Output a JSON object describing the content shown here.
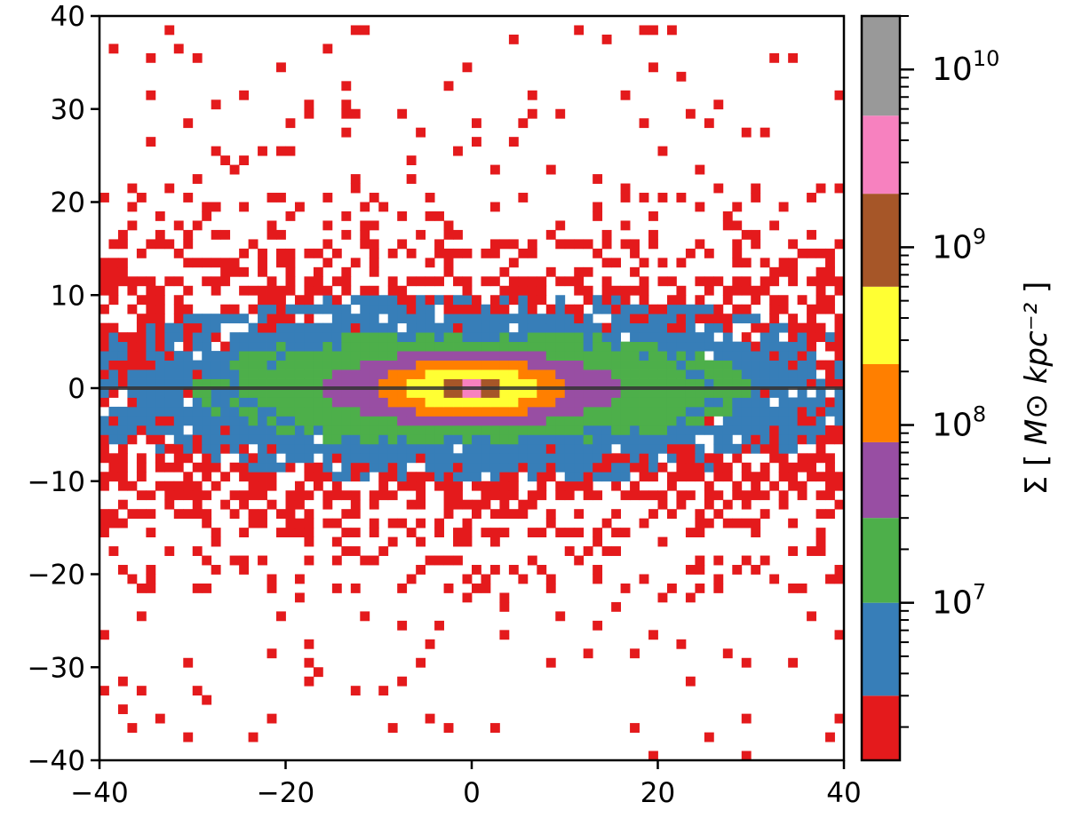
{
  "chart_data": {
    "type": "heatmap",
    "title": "",
    "xlabel": "",
    "ylabel": "",
    "xlim": [
      -40,
      40
    ],
    "ylim": [
      -40,
      40
    ],
    "bin_size_kpc": 1.0,
    "x_ticks": [
      -40,
      -20,
      0,
      20,
      40
    ],
    "x_tick_labels": [
      "−40",
      "−20",
      "0",
      "20",
      "40"
    ],
    "y_ticks": [
      -40,
      -30,
      -20,
      -10,
      0,
      10,
      20,
      30,
      40
    ],
    "y_tick_labels": [
      "−40",
      "−30",
      "−20",
      "−10",
      "0",
      "10",
      "20",
      "30",
      "40"
    ],
    "midplane_line_y": 0,
    "midplane_line_color": "#333333",
    "colorbar": {
      "label_prefix": "Σ",
      "label_unit": "M⊙ kpc⁻²",
      "scale": "log",
      "range": [
        1300000.0,
        20000000000.0
      ],
      "tick_values": [
        10000000.0,
        100000000.0,
        1000000000.0,
        10000000000.0
      ],
      "tick_labels": [
        "10",
        "10",
        "10",
        "10"
      ],
      "tick_exponents": [
        "7",
        "8",
        "9",
        "10"
      ],
      "levels": [
        {
          "from": 1300000.0,
          "to": 3000000.0,
          "color": "#e41a1c"
        },
        {
          "from": 3000000.0,
          "to": 10000000.0,
          "color": "#377eb8"
        },
        {
          "from": 10000000.0,
          "to": 30000000.0,
          "color": "#4daf4a"
        },
        {
          "from": 30000000.0,
          "to": 80000000.0,
          "color": "#984ea3"
        },
        {
          "from": 80000000.0,
          "to": 220000000.0,
          "color": "#ff7f00"
        },
        {
          "from": 220000000.0,
          "to": 600000000.0,
          "color": "#ffff33"
        },
        {
          "from": 600000000.0,
          "to": 2000000000.0,
          "color": "#a65628"
        },
        {
          "from": 2000000000.0,
          "to": 5500000000.0,
          "color": "#f781bf"
        },
        {
          "from": 5500000000.0,
          "to": 20000000000.0,
          "color": "#999999"
        }
      ]
    },
    "density_structure": {
      "description_levels": [
        "red: sparse halo pixels",
        "blue/green: disc",
        "purple-pink: bulge core"
      ],
      "bulge_rings": [
        {
          "level": 3,
          "half_width_x": 16,
          "half_height_y": 4
        },
        {
          "level": 4,
          "half_width_x": 10,
          "half_height_y": 3
        },
        {
          "level": 5,
          "half_width_x": 7,
          "half_height_y": 2
        },
        {
          "level": 6,
          "half_width_x": 3,
          "half_height_y": 1
        },
        {
          "level": 7,
          "half_width_x": 1,
          "half_height_y": 1
        }
      ],
      "disc_level2_half_width_x": 28,
      "disc_level2_half_height_y": 6,
      "disc_level1_half_width_x": 40,
      "disc_level1_half_height_y": 9,
      "red_pixels_sparse_regions": "scattered |y| 9-40"
    }
  }
}
